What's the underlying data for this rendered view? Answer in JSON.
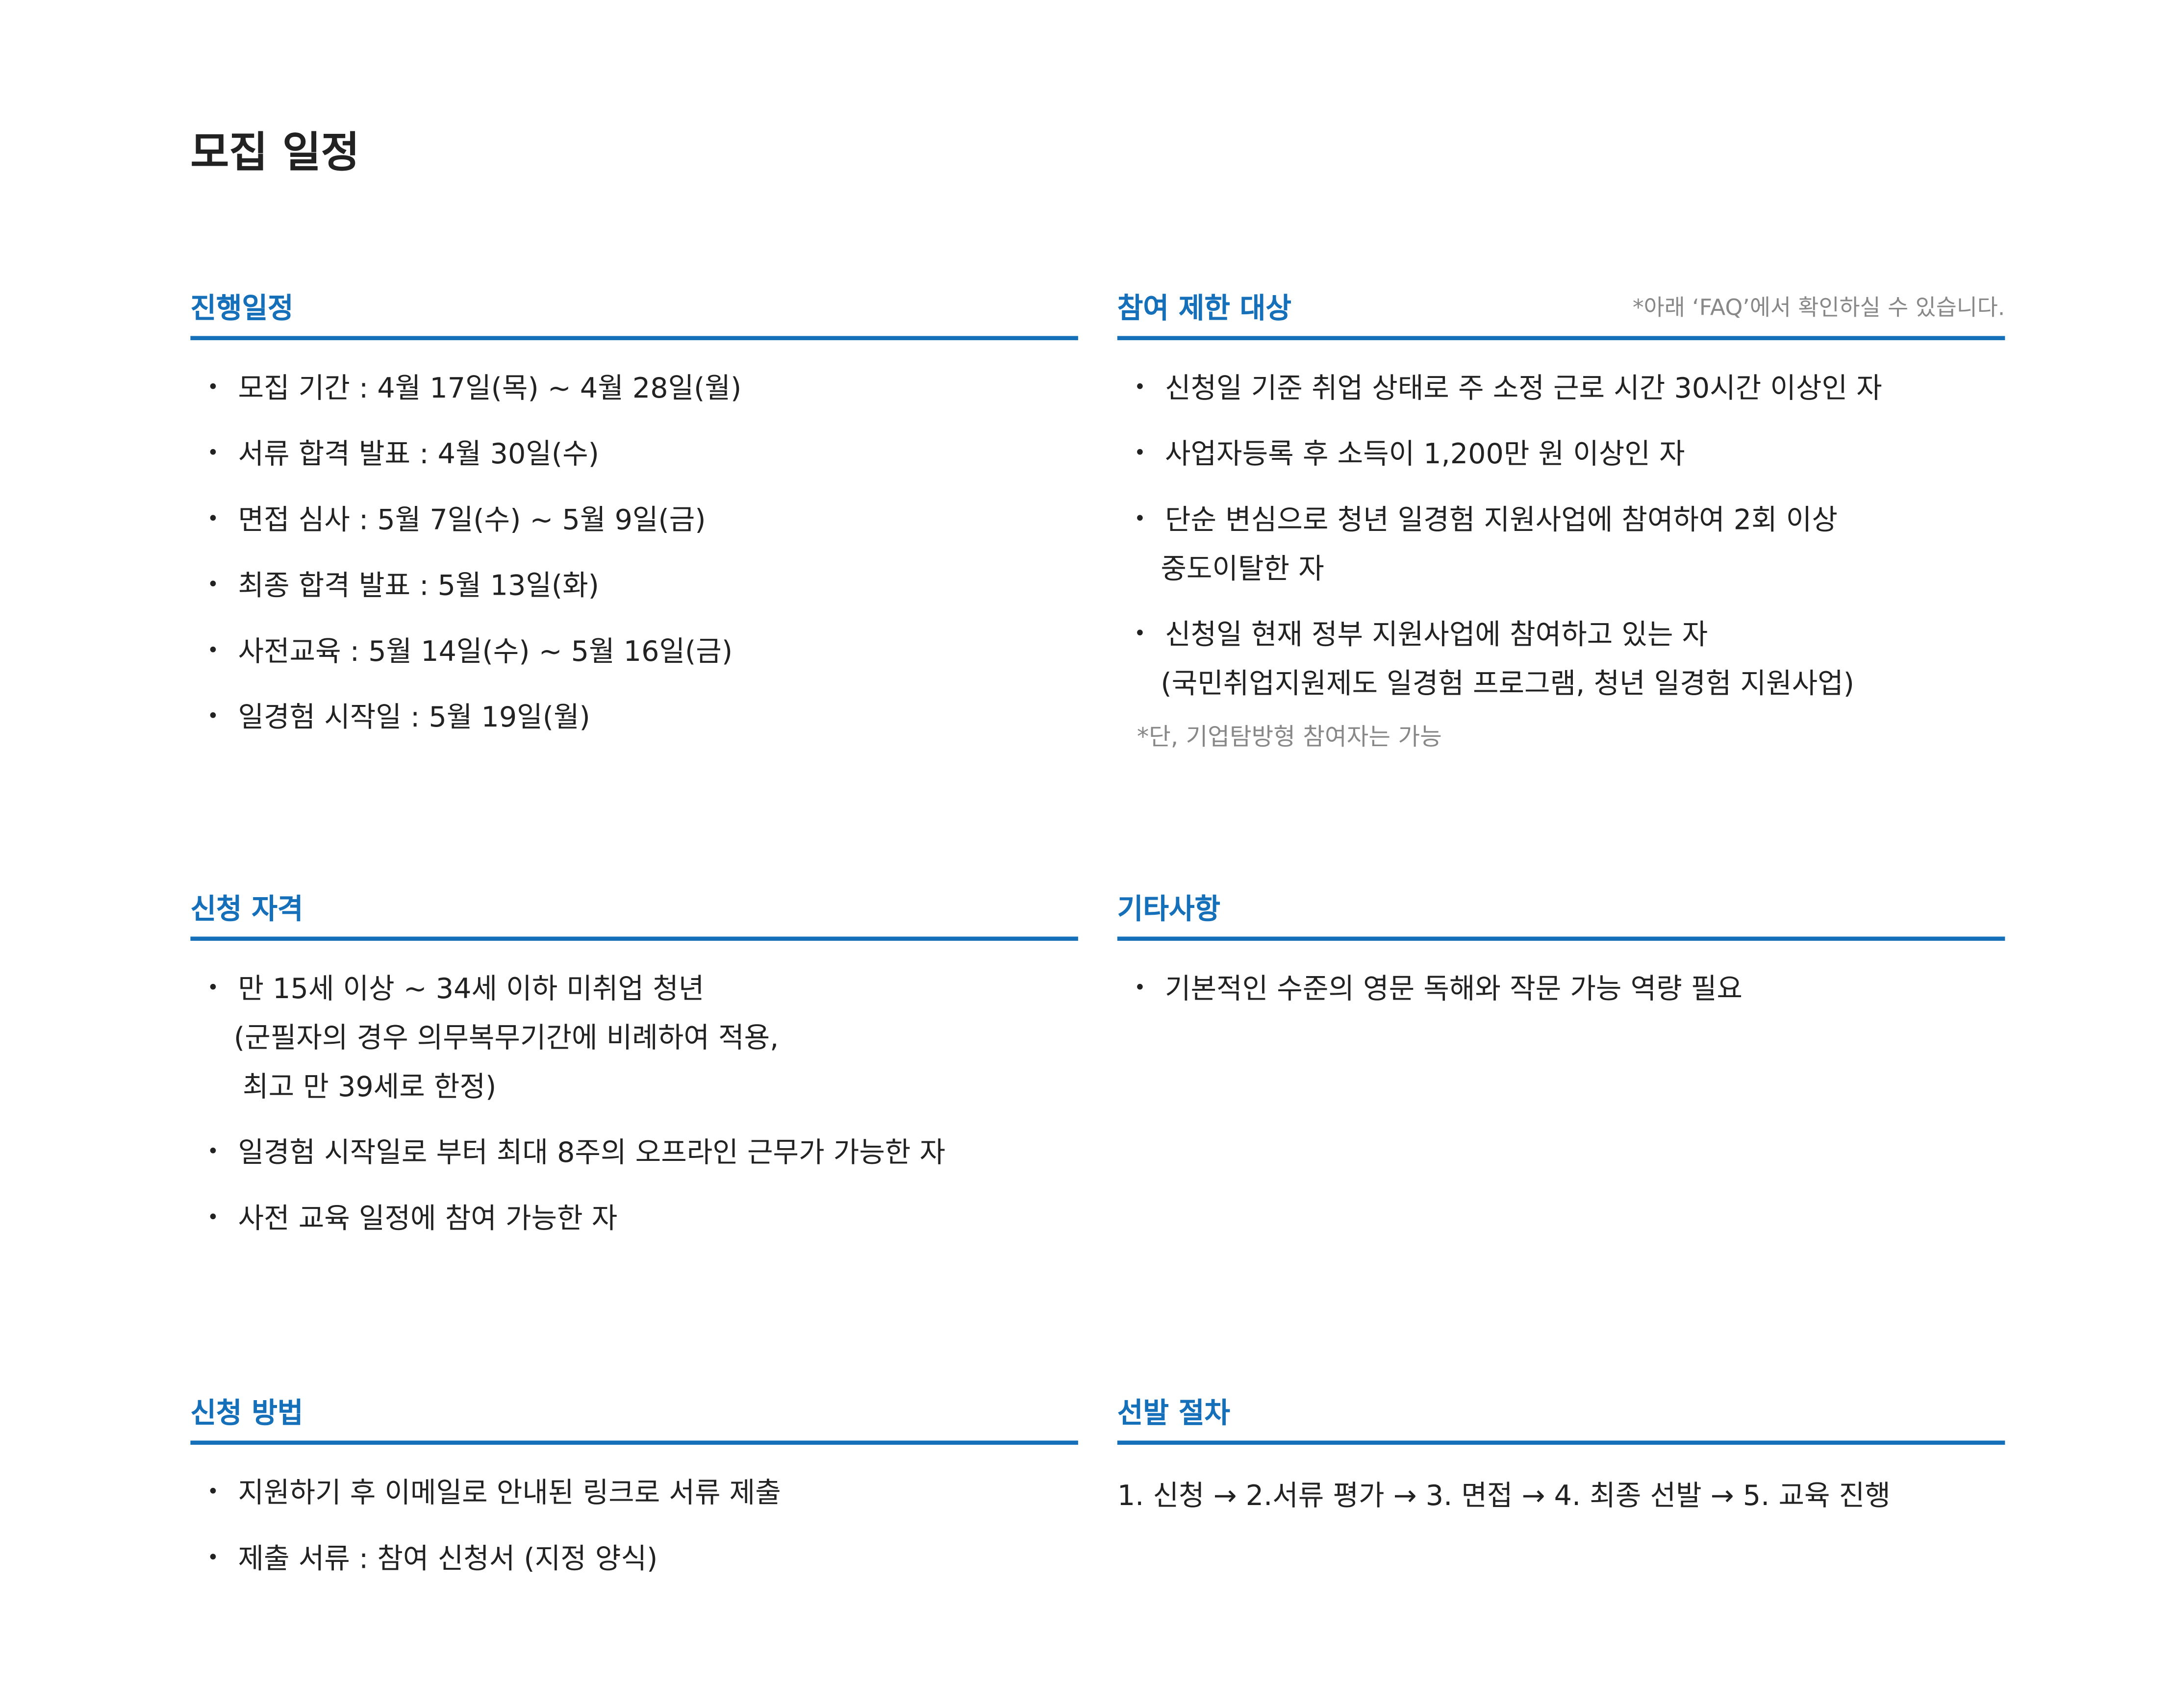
{
  "title": "모집 일정",
  "sections": [
    {
      "heading": "진행일정",
      "items": [
        [
          "모집 기간 : 4월 17일(목) ~ 4월 28일(월)"
        ],
        [
          "서류 합격 발표 : 4월 30일(수)"
        ],
        [
          "면접 심사 : 5월 7일(수) ~ 5월 9일(금)"
        ],
        [
          "최종 합격 발표 : 5월 13일(화)"
        ],
        [
          "사전교육 : 5월 14일(수) ~ 5월 16일(금)"
        ],
        [
          "일경험 시작일 : 5월 19일(월)"
        ]
      ]
    },
    {
      "heading": "참여 제한 대상",
      "note": "*아래 ‘FAQ’에서 확인하실 수 있습니다.",
      "items": [
        [
          "신청일 기준 취업 상태로 주 소정 근로 시간 30시간 이상인 자"
        ],
        [
          "사업자등록 후 소득이 1,200만 원 이상인 자"
        ],
        [
          "단순 변심으로 청년 일경험 지원사업에 참여하여 2회 이상",
          "중도이탈한 자"
        ],
        [
          "신청일 현재 정부 지원사업에 참여하고 있는 자",
          "(국민취업지원제도 일경험 프로그램, 청년 일경험 지원사업)"
        ]
      ],
      "footnote": "*단, 기업탐방형 참여자는 가능"
    },
    {
      "heading": "신청 자격",
      "items": [
        [
          "만 15세 이상 ~ 34세 이하 미취업 청년",
          "(군필자의 경우 의무복무기간에 비례하여 적용,",
          " 최고 만 39세로 한정)"
        ],
        [
          "일경험 시작일로 부터 최대 8주의 오프라인 근무가 가능한 자"
        ],
        [
          "사전 교육 일정에 참여 가능한 자"
        ]
      ]
    },
    {
      "heading": "기타사항",
      "items": [
        [
          "기본적인 수준의 영문 독해와 작문 가능 역량 필요"
        ]
      ]
    },
    {
      "heading": "신청 방법",
      "items": [
        [
          "지원하기 후 이메일로 안내된 링크로 서류 제출"
        ],
        [
          "제출 서류 : 참여 신청서 (지정 양식)"
        ]
      ]
    },
    {
      "heading": "선발 절차",
      "text": "1. 신청 → 2.서류 평가 → 3. 면접 → 4. 최종 선발 → 5. 교육 진행"
    }
  ]
}
